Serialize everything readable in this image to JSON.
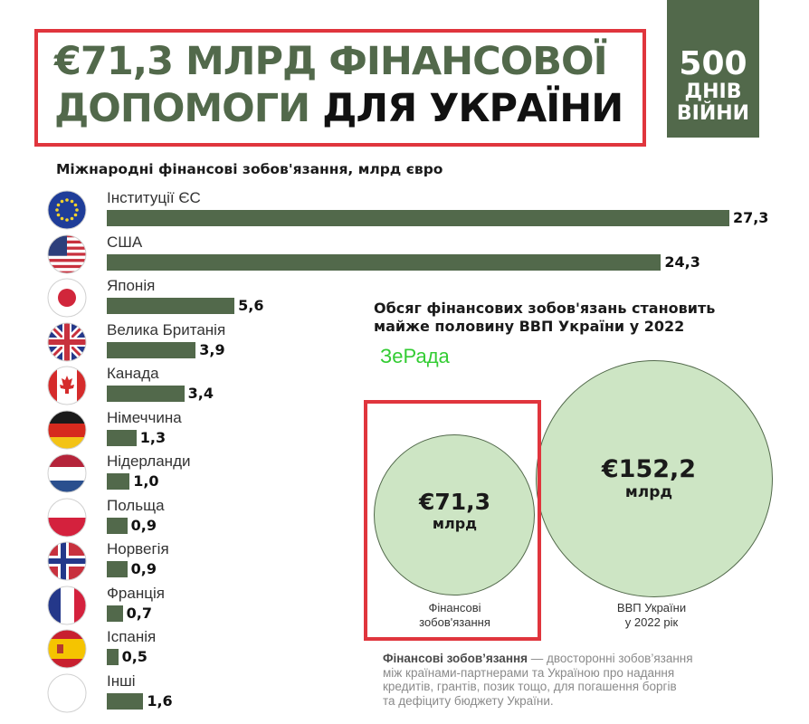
{
  "header": {
    "title_line1": "€71,3 МЛРД ФІНАНСОВОЇ",
    "title_line2_green": "ДОПОМОГИ",
    "title_line2_dark": "ДЛЯ УКРАЇНИ",
    "badge_num": "500",
    "badge_word1": "ДНІВ",
    "badge_word2": "ВІЙНИ"
  },
  "colors": {
    "bar": "#52694b",
    "accent_red": "#e0353d",
    "circle_fill": "#cde5c4",
    "watermark": "#33cc33"
  },
  "chart_data": {
    "type": "bar",
    "title": "Міжнародні фінансові зобов'язання, млрд євро",
    "orientation": "horizontal",
    "categories": [
      "Інституції ЄС",
      "США",
      "Японія",
      "Велика Британія",
      "Канада",
      "Німеччина",
      "Нідерланди",
      "Польща",
      "Норвегія",
      "Франція",
      "Іспанія",
      "Інші"
    ],
    "values": [
      27.3,
      24.3,
      5.6,
      3.9,
      3.4,
      1.3,
      1.0,
      0.9,
      0.9,
      0.7,
      0.5,
      1.6
    ],
    "value_labels": [
      "27,3",
      "24,3",
      "5,6",
      "3,9",
      "3,4",
      "1,3",
      "1,0",
      "0,9",
      "0,9",
      "0,7",
      "0,5",
      "1,6"
    ],
    "flag_icons": [
      "eu-flag-icon",
      "usa-flag-icon",
      "japan-flag-icon",
      "uk-flag-icon",
      "canada-flag-icon",
      "germany-flag-icon",
      "netherlands-flag-icon",
      "poland-flag-icon",
      "norway-flag-icon",
      "france-flag-icon",
      "spain-flag-icon",
      "other-flag-icon"
    ]
  },
  "comparison": {
    "heading_line1": "Обсяг фінансових зобов'язань становить",
    "heading_line2": "майже половину ВВП України у 2022",
    "watermark": "ЗеРада",
    "small": {
      "value": "€71,3",
      "unit": "млрд",
      "caption_line1": "Фінансові",
      "caption_line2": "зобов'язання",
      "amount": 71.3
    },
    "large": {
      "value": "€152,2",
      "unit": "млрд",
      "caption_line1": "ВВП України",
      "caption_line2": "у 2022 рік",
      "amount": 152.2
    }
  },
  "footnote": {
    "term": "Фінансові зобов’язання",
    "line1": " — двосторонні зобов’язання",
    "line2": "між країнами-партнерами та Україною про надання",
    "line3": "кредитів, грантів, позик тощо, для погашення боргів",
    "line4": "та дефіциту бюджету України."
  }
}
